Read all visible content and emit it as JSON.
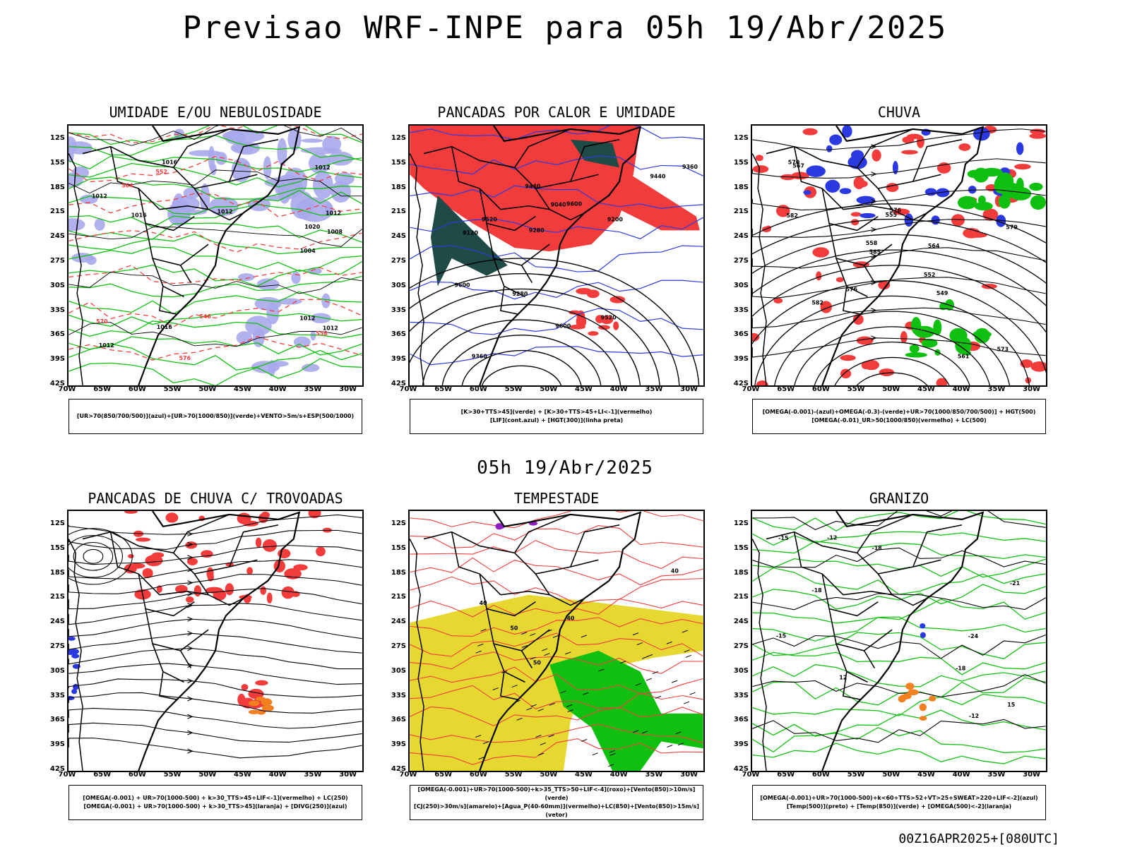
{
  "title": "Previsao WRF-INPE  para 05h 19/Abr/2025",
  "subtitle": "05h 19/Abr/2025",
  "footer": "00Z16APR2025+[080UTC]",
  "lat_labels": [
    "12S",
    "15S",
    "18S",
    "21S",
    "24S",
    "27S",
    "30S",
    "33S",
    "36S",
    "39S",
    "42S"
  ],
  "lon_labels": [
    "70W",
    "65W",
    "60W",
    "55W",
    "50W",
    "45W",
    "40W",
    "35W",
    "30W"
  ],
  "panels": [
    {
      "title": "UMIDADE E/OU NEBULOSIDADE",
      "legend": [
        "[UR>70(850/700/500)](azul)+[UR>70(1000/850)](verde)+VENTO>5m/s+ESP(500/1000)"
      ],
      "labels": [
        "1012",
        "1012",
        "1012",
        "1012",
        "1012",
        "1016",
        "1020",
        "1016",
        "1012",
        "1016",
        "1008",
        "1012",
        "1004",
        "576",
        "570",
        "564",
        "558",
        "552",
        "546"
      ]
    },
    {
      "title": "PANCADAS POR CALOR E UMIDADE",
      "legend": [
        "[K>30+TTS>45](verde) + [K>30+TTS>45+LI<-1](vermelho)",
        "[LIF](cont.azul) + [HGT(300)](linha preta)"
      ],
      "labels": [
        "9600",
        "9600",
        "9600",
        "9520",
        "9520",
        "9440",
        "9440",
        "9360",
        "9360",
        "9280",
        "9280",
        "9200",
        "9120",
        "9040"
      ]
    },
    {
      "title": "CHUVA",
      "legend": [
        "[OMEGA(-0.001)-(azul)+OMEGA(-0.3)-(verde)+UR>70(1000/850/700/500)] + HGT(500)",
        "[OMEGA(-0.01)_UR>50(1000/850)(vermelho) + LC(500)"
      ],
      "labels": [
        "585",
        "582",
        "582",
        "579",
        "576",
        "576",
        "573",
        "570",
        "567",
        "564",
        "561",
        "558",
        "555",
        "552",
        "549"
      ]
    },
    {
      "title": "PANCADAS DE CHUVA C/ TROVOADAS",
      "legend": [
        "[OMEGA(-0.001) + UR>70(1000-500) + k>30_TTS>45+LIF<-1](vermelho) + LC(250)",
        "[OMEGA(-0.001) + UR>70(1000-500) + k>30_TTS>45](laranja) + [DIVG(250)](azul)"
      ],
      "labels": []
    },
    {
      "title": "TEMPESTADE",
      "legend": [
        "[OMEGA(-0.001)+UR>70(1000-500)+k>35_TTS>50+LIF<-4](roxo)+[Vento(850)>10m/s](verde)",
        "[CJ(250)>30m/s](amarelo)+[Agua_P(40-60mm)](vermelho)+LC(850)+[Vento(850)>15m/s](vetor)"
      ],
      "labels": [
        "40",
        "40",
        "50",
        "50",
        "40"
      ]
    },
    {
      "title": "GRANIZO",
      "legend": [
        "[OMEGA(-0.001)+UR>70(1000-500)+k<60+TTS>52+VT>25+SWEAT>220+LIF<-2](azul)",
        "[Temp(500)](preto) + [Temp(850)](verde) + [OMEGA(500)<-2](laranja)"
      ],
      "labels": [
        "-12",
        "-12",
        "-15",
        "-15",
        "-18",
        "-18",
        "-21",
        "-24",
        "-18",
        "12",
        "15"
      ]
    }
  ],
  "colors": {
    "blue": "#2a3ae0",
    "green": "#10c010",
    "red": "#f23c3c",
    "lavender": "#a8a8ec",
    "darkteal": "#1f4a46",
    "yellow": "#e6d830",
    "orange": "#f08020",
    "purple": "#9020c0"
  }
}
